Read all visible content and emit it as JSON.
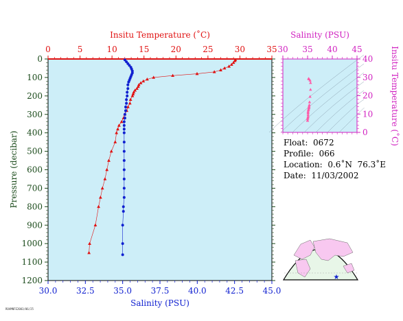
{
  "colors": {
    "plot_bg": "#cdeef8",
    "temperature": "#e01010",
    "salinity": "#1020d0",
    "magenta": "#d020c0",
    "pressure_axis": "#1a4a1a",
    "land": "#f8c8f0",
    "ocean": "#e8f6e8"
  },
  "info": {
    "float": "Float:  0672",
    "profile": "Profile:  066",
    "location": "Location:  0.6˚N  76.3˚E",
    "date": "Date:  11/03/2002"
  },
  "stamp": "ROAMNFE2003/06/25",
  "chart_data": [
    {
      "type": "line",
      "name": "profile",
      "top_axis": {
        "label": "Insitu Temperature (˚C)",
        "range": [
          0,
          35
        ],
        "ticks": [
          "0",
          "5",
          "10",
          "15",
          "20",
          "25",
          "30",
          "35"
        ]
      },
      "bottom_axis": {
        "label": "Salinity (PSU)",
        "range": [
          30.0,
          45.0
        ],
        "ticks": [
          "30.0",
          "32.5",
          "35.0",
          "37.5",
          "40.0",
          "42.5",
          "45.0"
        ]
      },
      "left_axis": {
        "label": "Pressure (decibar)",
        "range": [
          0,
          1200
        ],
        "reversed": true,
        "ticks": [
          "0",
          "100",
          "200",
          "300",
          "400",
          "500",
          "600",
          "700",
          "800",
          "900",
          "1000",
          "1100",
          "1200"
        ]
      },
      "temperature": {
        "pressure": [
          5,
          10,
          20,
          30,
          40,
          50,
          60,
          70,
          80,
          90,
          100,
          110,
          120,
          130,
          140,
          150,
          160,
          170,
          180,
          190,
          200,
          220,
          240,
          260,
          280,
          300,
          320,
          340,
          360,
          380,
          400,
          450,
          500,
          550,
          600,
          650,
          700,
          750,
          800,
          900,
          1000,
          1050
        ],
        "values": [
          29.3,
          29.2,
          29.0,
          28.7,
          28.3,
          27.6,
          27.0,
          26.0,
          23.3,
          19.5,
          16.5,
          15.5,
          14.9,
          14.5,
          14.2,
          14.1,
          13.9,
          13.6,
          13.4,
          13.3,
          13.2,
          12.9,
          12.8,
          12.5,
          12.3,
          12.0,
          11.8,
          11.5,
          11.1,
          10.9,
          10.7,
          10.5,
          9.9,
          9.5,
          9.2,
          8.9,
          8.5,
          8.2,
          7.9,
          7.4,
          6.5,
          6.4
        ]
      },
      "salinity": {
        "pressure": [
          5,
          15,
          25,
          35,
          45,
          55,
          65,
          75,
          85,
          95,
          105,
          115,
          125,
          140,
          160,
          180,
          200,
          220,
          240,
          260,
          280,
          300,
          320,
          340,
          360,
          380,
          400,
          450,
          500,
          550,
          600,
          650,
          700,
          750,
          800,
          825,
          900,
          1000,
          1060
        ],
        "values": [
          35.15,
          35.25,
          35.35,
          35.45,
          35.55,
          35.6,
          35.65,
          35.65,
          35.6,
          35.55,
          35.5,
          35.45,
          35.4,
          35.35,
          35.35,
          35.3,
          35.3,
          35.25,
          35.25,
          35.2,
          35.2,
          35.15,
          35.15,
          35.1,
          35.1,
          35.1,
          35.1,
          35.1,
          35.1,
          35.1,
          35.1,
          35.1,
          35.1,
          35.1,
          35.05,
          35.05,
          35.0,
          35.0,
          35.0
        ]
      }
    },
    {
      "type": "scatter",
      "name": "ts-diagram",
      "top_axis": {
        "label": "Salinity (PSU)",
        "range": [
          30,
          45
        ],
        "ticks": [
          "30",
          "35",
          "40",
          "45"
        ]
      },
      "right_axis": {
        "label": "Insitu Temperature (˚C)",
        "range": [
          0,
          40
        ],
        "ticks": [
          "0",
          "10",
          "20",
          "30",
          "40"
        ]
      },
      "points": [
        [
          35.2,
          29.3
        ],
        [
          35.3,
          29.0
        ],
        [
          35.5,
          28.3
        ],
        [
          35.6,
          27.0
        ],
        [
          35.6,
          23.3
        ],
        [
          35.5,
          19.5
        ],
        [
          35.4,
          16.5
        ],
        [
          35.35,
          14.9
        ],
        [
          35.3,
          14.2
        ],
        [
          35.3,
          13.6
        ],
        [
          35.25,
          13.2
        ],
        [
          35.2,
          12.5
        ],
        [
          35.15,
          12.0
        ],
        [
          35.1,
          11.1
        ],
        [
          35.1,
          10.5
        ],
        [
          35.1,
          9.5
        ],
        [
          35.1,
          8.5
        ],
        [
          35.05,
          7.9
        ],
        [
          35.0,
          7.4
        ],
        [
          35.0,
          6.5
        ],
        [
          35.0,
          6.4
        ]
      ]
    }
  ]
}
